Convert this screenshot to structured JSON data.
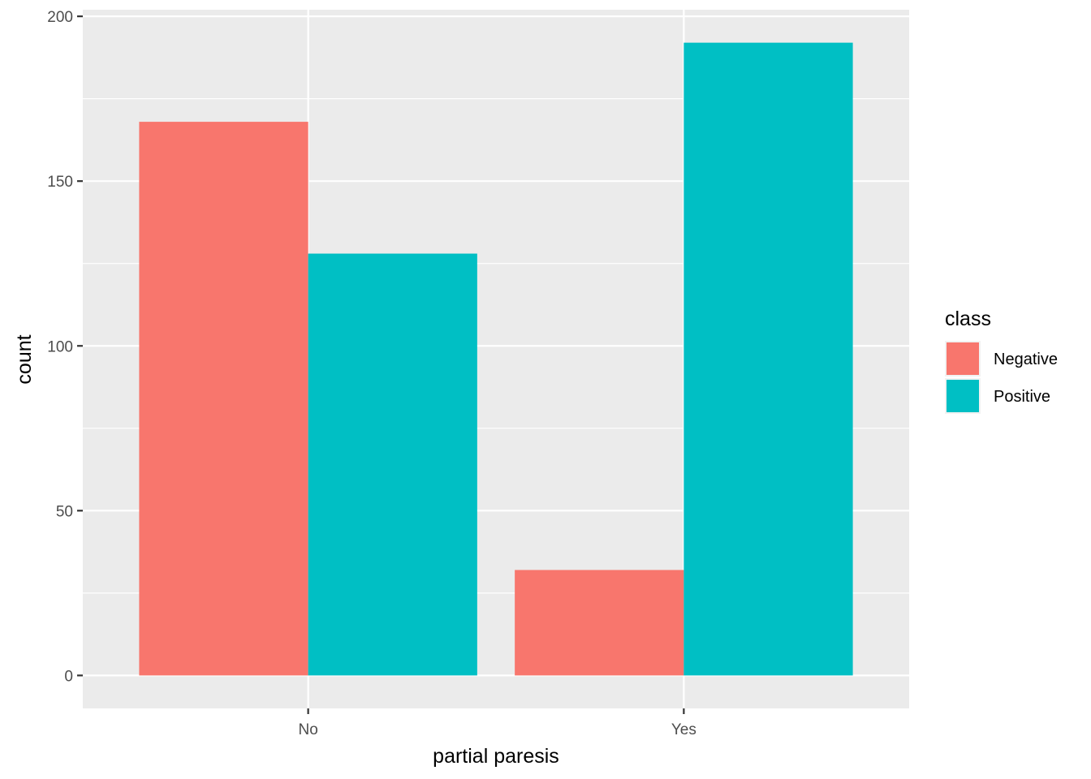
{
  "chart_data": {
    "type": "bar",
    "layout": "dodge",
    "xlabel": "partial paresis",
    "ylabel": "count",
    "categories": [
      "No",
      "Yes"
    ],
    "ylim": [
      -10,
      202
    ],
    "yticks": [
      0,
      50,
      100,
      150,
      200
    ],
    "grid": true,
    "legend": {
      "title": "class",
      "placement": "right"
    },
    "series": [
      {
        "name": "Negative",
        "color": "#F8766D",
        "values": [
          168,
          32
        ]
      },
      {
        "name": "Positive",
        "color": "#00BFC4",
        "values": [
          128,
          192
        ]
      }
    ]
  }
}
